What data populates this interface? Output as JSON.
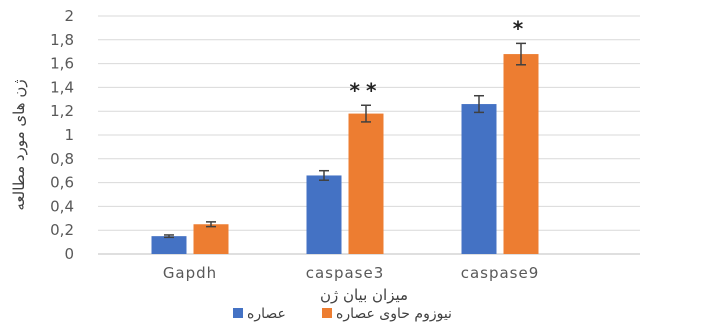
{
  "chart_data": {
    "type": "bar",
    "categories": [
      "Gapdh",
      "caspase3",
      "caspase9"
    ],
    "series": [
      {
        "name": "عصاره",
        "color": "#4472C4",
        "values": [
          0.15,
          0.66,
          1.26
        ],
        "errors": [
          0.01,
          0.04,
          0.07
        ]
      },
      {
        "name": "نیوزوم حاوی عصاره",
        "color": "#ED7D31",
        "values": [
          0.25,
          1.18,
          1.68
        ],
        "errors": [
          0.02,
          0.07,
          0.09
        ]
      }
    ],
    "annotations": [
      "",
      "**",
      "*"
    ],
    "xlabel": "میزان بیان ژن",
    "ylabel": "ژن های مورد مطالعه",
    "ylim": [
      0,
      2
    ],
    "yticks": [
      "0",
      "0,2",
      "0,4",
      "0,6",
      "0,8",
      "1",
      "1,2",
      "1,4",
      "1,6",
      "1,8",
      "2"
    ],
    "grid": true,
    "legend": "bottom"
  }
}
